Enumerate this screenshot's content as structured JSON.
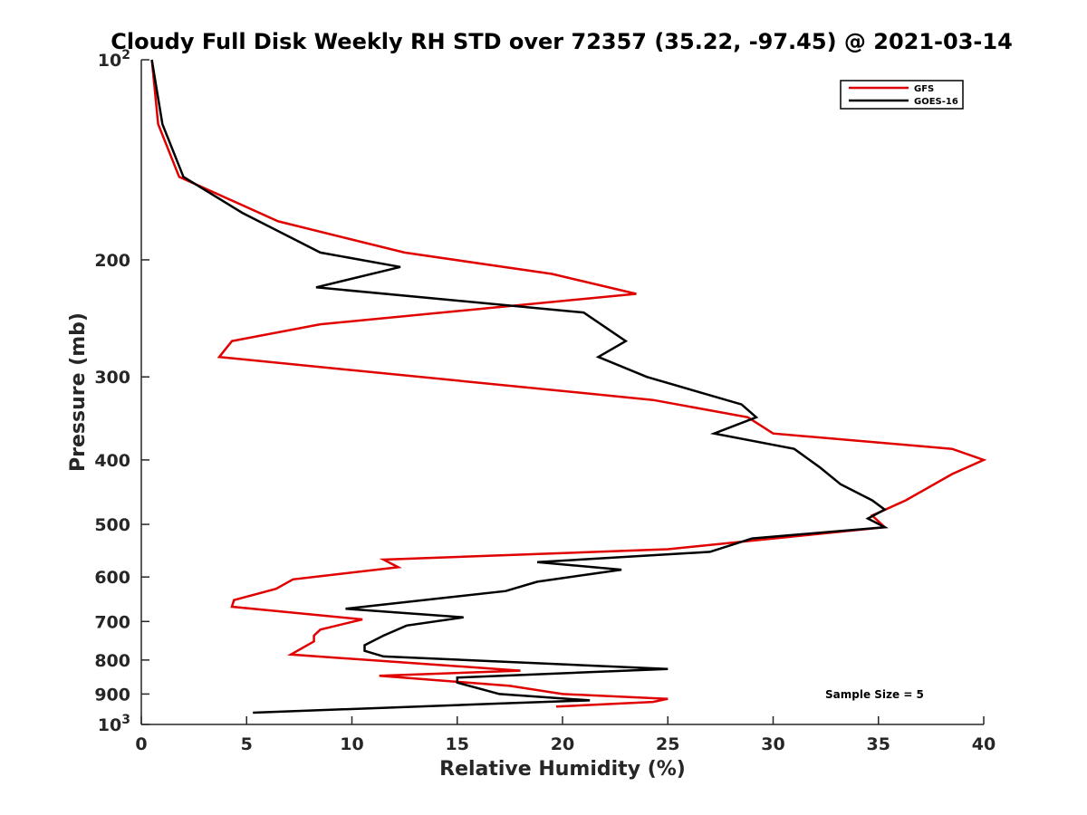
{
  "chart_data": {
    "type": "line",
    "title": "Cloudy Full Disk Weekly RH STD over 72357 (35.22, -97.45) @ 2021-03-14",
    "xlabel": "Relative Humidity (%)",
    "ylabel": "Pressure (mb)",
    "xlim": [
      0,
      40
    ],
    "ylim": [
      100,
      1000
    ],
    "y_scale": "log",
    "y_reversed": true,
    "grid": false,
    "legend_position": "top-right",
    "x_ticks": [
      "0",
      "5",
      "10",
      "15",
      "20",
      "25",
      "30",
      "35",
      "40"
    ],
    "y_ticks": [
      {
        "value": 200,
        "label": "200"
      },
      {
        "value": 300,
        "label": "300"
      },
      {
        "value": 400,
        "label": "400"
      },
      {
        "value": 500,
        "label": "500"
      },
      {
        "value": 600,
        "label": "600"
      },
      {
        "value": 700,
        "label": "700"
      },
      {
        "value": 800,
        "label": "800"
      },
      {
        "value": 900,
        "label": "900"
      }
    ],
    "y_end_ticks": [
      {
        "value": 100,
        "base": "10",
        "exp": "2"
      },
      {
        "value": 1000,
        "base": "10",
        "exp": "3"
      }
    ],
    "annotation": "Sample Size = 5",
    "series": [
      {
        "name": "GFS",
        "color": "#e00000",
        "points": [
          [
            0.5,
            100
          ],
          [
            0.8,
            125
          ],
          [
            1.8,
            150
          ],
          [
            6.5,
            175
          ],
          [
            12.5,
            195
          ],
          [
            19.5,
            210
          ],
          [
            23.5,
            225
          ],
          [
            8.5,
            250
          ],
          [
            4.3,
            265
          ],
          [
            3.7,
            280
          ],
          [
            24.3,
            325
          ],
          [
            28.8,
            345
          ],
          [
            30.0,
            365
          ],
          [
            38.5,
            385
          ],
          [
            40.0,
            400
          ],
          [
            38.5,
            420
          ],
          [
            36.3,
            460
          ],
          [
            34.7,
            485
          ],
          [
            35.3,
            505
          ],
          [
            25.0,
            545
          ],
          [
            11.5,
            565
          ],
          [
            12.2,
            580
          ],
          [
            7.2,
            605
          ],
          [
            6.4,
            625
          ],
          [
            4.4,
            650
          ],
          [
            4.3,
            665
          ],
          [
            10.5,
            695
          ],
          [
            8.5,
            720
          ],
          [
            8.2,
            735
          ],
          [
            8.2,
            750
          ],
          [
            7.1,
            785
          ],
          [
            18.0,
            830
          ],
          [
            11.3,
            845
          ],
          [
            17.5,
            875
          ],
          [
            20.0,
            900
          ],
          [
            25.0,
            915
          ],
          [
            24.3,
            925
          ],
          [
            19.7,
            940
          ]
        ]
      },
      {
        "name": "GOES-16",
        "color": "#000000",
        "points": [
          [
            0.5,
            100
          ],
          [
            1.0,
            125
          ],
          [
            2.0,
            150
          ],
          [
            4.8,
            170
          ],
          [
            8.5,
            195
          ],
          [
            12.3,
            205
          ],
          [
            8.3,
            220
          ],
          [
            21.0,
            240
          ],
          [
            23.0,
            265
          ],
          [
            21.7,
            280
          ],
          [
            24.0,
            300
          ],
          [
            28.5,
            330
          ],
          [
            29.2,
            345
          ],
          [
            27.2,
            365
          ],
          [
            31.0,
            385
          ],
          [
            32.2,
            410
          ],
          [
            33.2,
            435
          ],
          [
            34.7,
            460
          ],
          [
            35.3,
            475
          ],
          [
            34.5,
            490
          ],
          [
            35.3,
            505
          ],
          [
            29.0,
            525
          ],
          [
            27.0,
            550
          ],
          [
            18.8,
            570
          ],
          [
            22.8,
            585
          ],
          [
            18.8,
            610
          ],
          [
            17.3,
            630
          ],
          [
            9.7,
            670
          ],
          [
            15.3,
            690
          ],
          [
            12.6,
            710
          ],
          [
            11.5,
            735
          ],
          [
            10.6,
            760
          ],
          [
            10.6,
            775
          ],
          [
            11.5,
            790
          ],
          [
            25.0,
            825
          ],
          [
            15.0,
            850
          ],
          [
            15.0,
            865
          ],
          [
            17.0,
            900
          ],
          [
            21.3,
            920
          ],
          [
            17.0,
            930
          ],
          [
            5.3,
            960
          ]
        ]
      }
    ]
  }
}
